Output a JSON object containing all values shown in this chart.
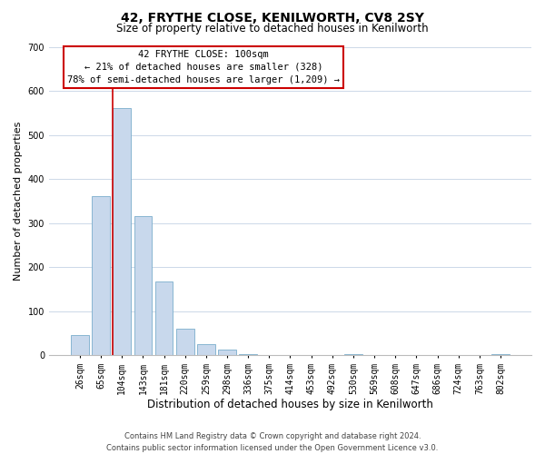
{
  "title": "42, FRYTHE CLOSE, KENILWORTH, CV8 2SY",
  "subtitle": "Size of property relative to detached houses in Kenilworth",
  "xlabel": "Distribution of detached houses by size in Kenilworth",
  "ylabel": "Number of detached properties",
  "bar_labels": [
    "26sqm",
    "65sqm",
    "104sqm",
    "143sqm",
    "181sqm",
    "220sqm",
    "259sqm",
    "298sqm",
    "336sqm",
    "375sqm",
    "414sqm",
    "453sqm",
    "492sqm",
    "530sqm",
    "569sqm",
    "608sqm",
    "647sqm",
    "686sqm",
    "724sqm",
    "763sqm",
    "802sqm"
  ],
  "bar_values": [
    45,
    360,
    560,
    315,
    168,
    60,
    25,
    12,
    3,
    0,
    0,
    0,
    0,
    3,
    0,
    0,
    0,
    0,
    0,
    0,
    3
  ],
  "bar_color": "#c8d8ec",
  "bar_edge_color": "#7aadcc",
  "vline_x_idx": 2,
  "vline_color": "#cc0000",
  "ylim": [
    0,
    700
  ],
  "yticks": [
    0,
    100,
    200,
    300,
    400,
    500,
    600,
    700
  ],
  "annotation_title": "42 FRYTHE CLOSE: 100sqm",
  "annotation_line1": "← 21% of detached houses are smaller (328)",
  "annotation_line2": "78% of semi-detached houses are larger (1,209) →",
  "annotation_box_color": "#ffffff",
  "annotation_box_edge": "#cc0000",
  "footer_line1": "Contains HM Land Registry data © Crown copyright and database right 2024.",
  "footer_line2": "Contains public sector information licensed under the Open Government Licence v3.0.",
  "background_color": "#ffffff",
  "grid_color": "#ccd8e8",
  "title_fontsize": 10,
  "subtitle_fontsize": 8.5,
  "ylabel_fontsize": 8,
  "xlabel_fontsize": 8.5,
  "tick_fontsize": 7,
  "annotation_fontsize": 7.5,
  "footer_fontsize": 6
}
